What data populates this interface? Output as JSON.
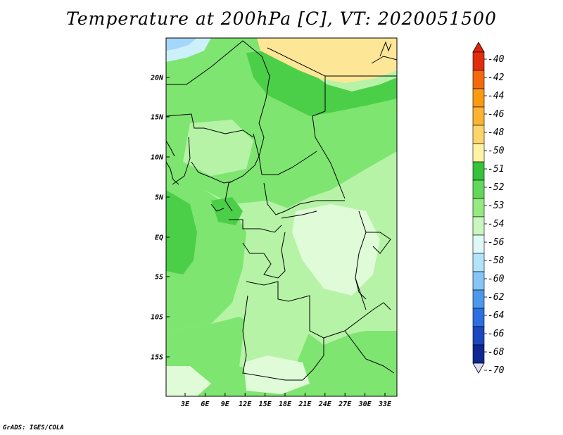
{
  "title": "Temperature at 200hPa [C], VT: 2020051500",
  "credit": "GrADS: IGES/COLA",
  "map": {
    "lat_labels": [
      "20N",
      "15N",
      "10N",
      "5N",
      "EQ",
      "5S",
      "10S",
      "15S"
    ],
    "lon_labels": [
      "3E",
      "6E",
      "9E",
      "12E",
      "15E",
      "18E",
      "21E",
      "24E",
      "27E",
      "30E",
      "33E"
    ]
  },
  "colorbar": {
    "labels": [
      "-40",
      "-42",
      "-44",
      "-46",
      "-48",
      "-50",
      "-51",
      "-52",
      "-53",
      "-54",
      "-56",
      "-58",
      "-60",
      "-62",
      "-64",
      "-66",
      "-68",
      "-70"
    ],
    "colors": [
      "#e02d0c",
      "#f4690b",
      "#f99a11",
      "#fbb431",
      "#fdd56a",
      "#fef4a5",
      "#36c23a",
      "#62d85a",
      "#96ea82",
      "#c9f7be",
      "#dff8f8",
      "#b3e3fb",
      "#86c6f7",
      "#4c99ec",
      "#2b6fe0",
      "#1b47bf",
      "#0e2791",
      "#0b105e"
    ],
    "top_color": "#e0220a",
    "bottom_color": "#dcdcf6"
  },
  "field_colors": {
    "c_54": "#e0fbd8",
    "c_53": "#b6f3a7",
    "c_52": "#7ee571",
    "c_51": "#4bcf48",
    "c_50": "#fde796",
    "c_56": "#cdf1fb",
    "c_58": "#a5d7fb"
  }
}
